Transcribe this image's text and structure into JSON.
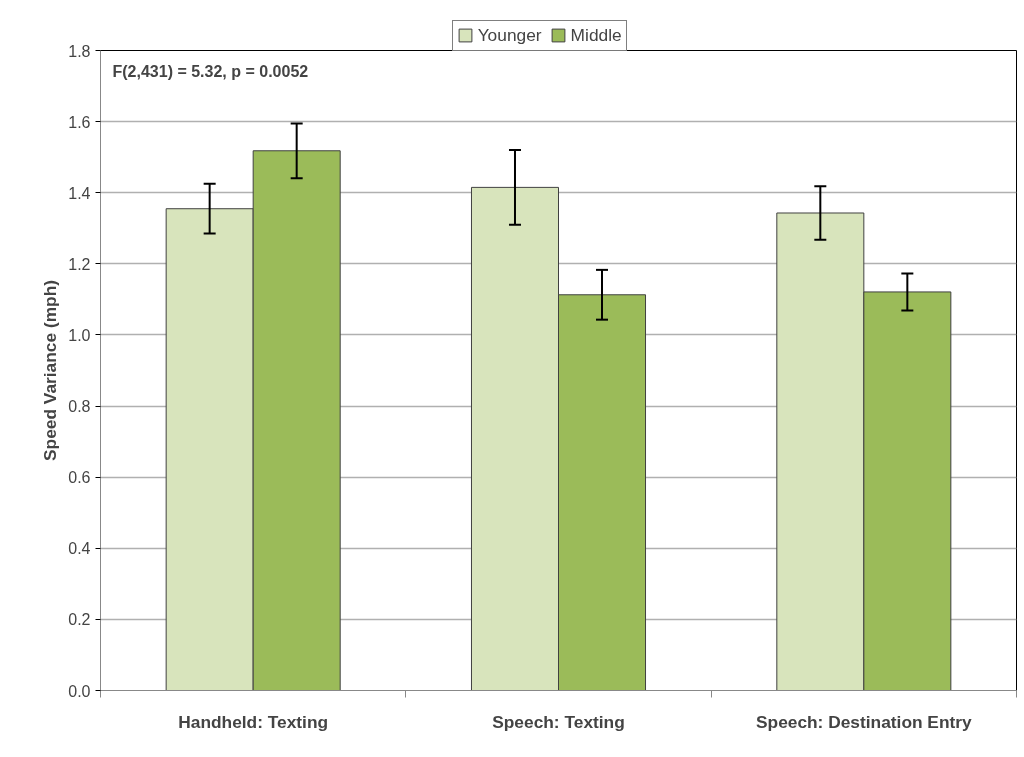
{
  "chart_data": {
    "type": "bar",
    "ylabel": "Speed Variance (mph)",
    "categories": [
      "Handheld: Texting",
      "Speech: Texting",
      "Speech: Destination Entry"
    ],
    "series": [
      {
        "name": "Younger",
        "color": "#d8e4bc",
        "values": [
          1.355,
          1.415,
          1.343
        ],
        "errors": [
          0.07,
          0.105,
          0.075
        ]
      },
      {
        "name": "Middle",
        "color": "#9bbb59",
        "values": [
          1.518,
          1.113,
          1.121
        ],
        "errors": [
          0.077,
          0.07,
          0.052
        ]
      }
    ],
    "ylim": [
      0,
      1.8
    ],
    "yticks": [
      {
        "value": 0,
        "label": "0.0"
      },
      0.2,
      0.4,
      0.6,
      0.8,
      {
        "value": 1,
        "label": "1.0"
      },
      1.2,
      1.4,
      1.6,
      1.8
    ],
    "grid": "y",
    "legend": "top",
    "annotations": [
      "F(2,431) = 5.32, p = 0.0052"
    ]
  }
}
